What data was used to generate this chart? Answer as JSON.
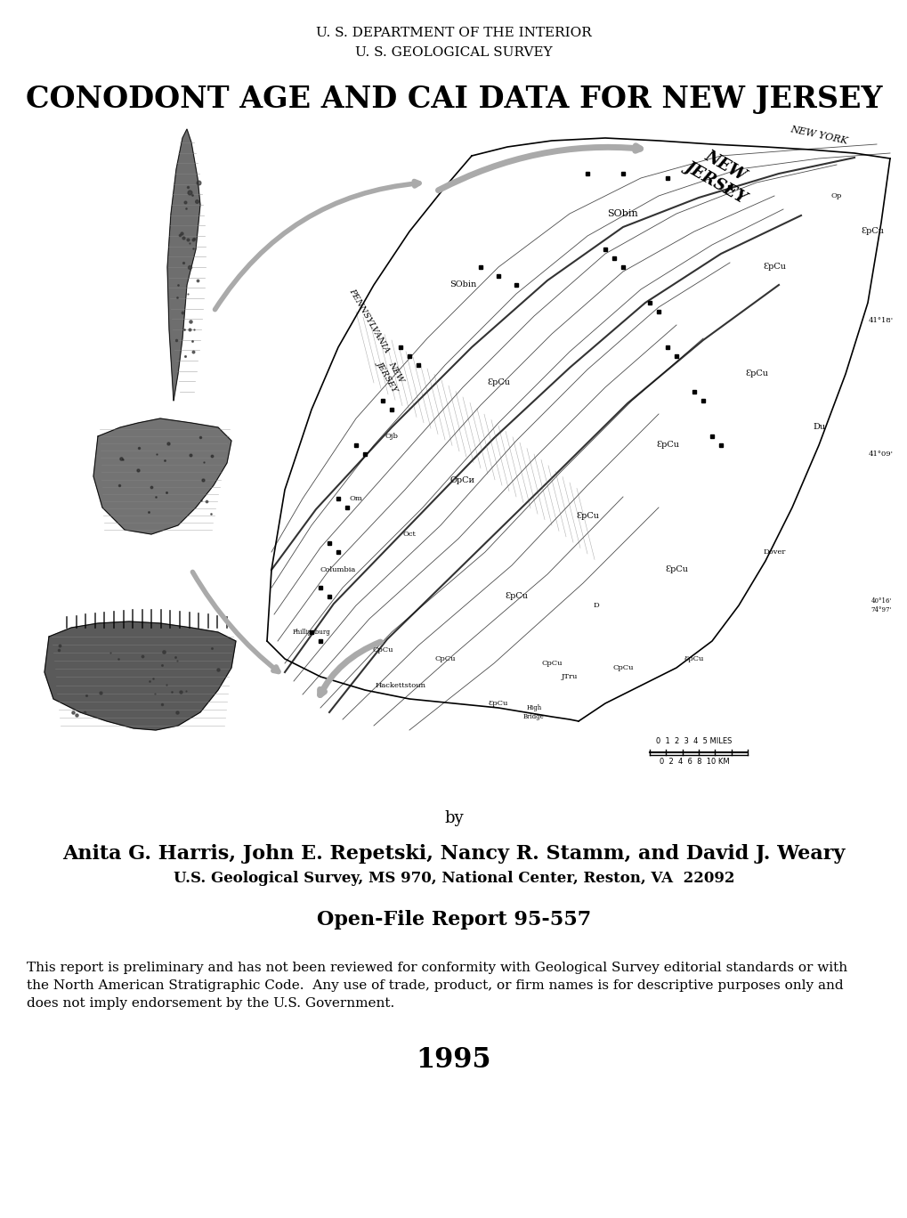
{
  "header_line1": "U. S. DEPARTMENT OF THE INTERIOR",
  "header_line2": "U. S. GEOLOGICAL SURVEY",
  "title": "CONODONT AGE AND CAI DATA FOR NEW JERSEY",
  "by_text": "by",
  "authors_line1": "Anita G. Harris, John E. Repetski, Nancy R. Stamm, and David J. Weary",
  "authors_line2": "U.S. Geological Survey, MS 970, National Center, Reston, VA  22092",
  "report_title": "Open-File Report 95-557",
  "disclaimer_line1": "This report is preliminary and has not been reviewed for conformity with Geological Survey editorial standards or with",
  "disclaimer_line2": "the North American Stratigraphic Code.  Any use of trade, product, or firm names is for descriptive purposes only and",
  "disclaimer_line3": "does not imply endorsement by the U.S. Government.",
  "year": "1995",
  "background_color": "#ffffff",
  "text_color": "#000000",
  "fig_width": 10.2,
  "fig_height": 13.68,
  "dpi": 100
}
